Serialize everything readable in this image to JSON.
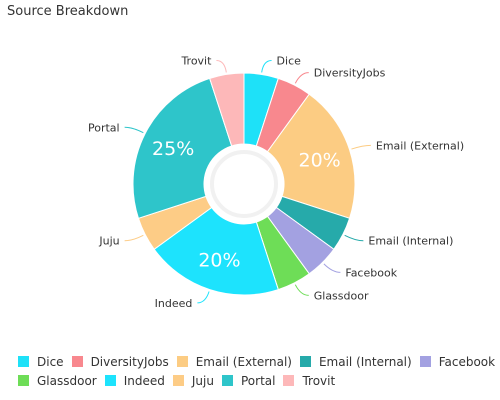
{
  "chart_data": {
    "type": "pie",
    "title": "Source Breakdown",
    "categories": [
      "Dice",
      "DiversityJobs",
      "Email (External)",
      "Email (Internal)",
      "Facebook",
      "Glassdoor",
      "Indeed",
      "Juju",
      "Portal",
      "Trovit"
    ],
    "values": [
      5,
      5,
      20,
      5,
      5,
      5,
      20,
      5,
      25,
      5
    ],
    "colors": [
      "#1ee1f8",
      "#f8888e",
      "#fccc83",
      "#26aaaa",
      "#a3a1e1",
      "#6edd57",
      "#1de3fd",
      "#fdcc86",
      "#2ec5ca",
      "#fdb8b9"
    ],
    "data_labels": [
      "",
      "",
      "20%",
      "",
      "",
      "",
      "20%",
      "",
      "25%",
      ""
    ],
    "donut": true,
    "legend_position": "bottom"
  }
}
